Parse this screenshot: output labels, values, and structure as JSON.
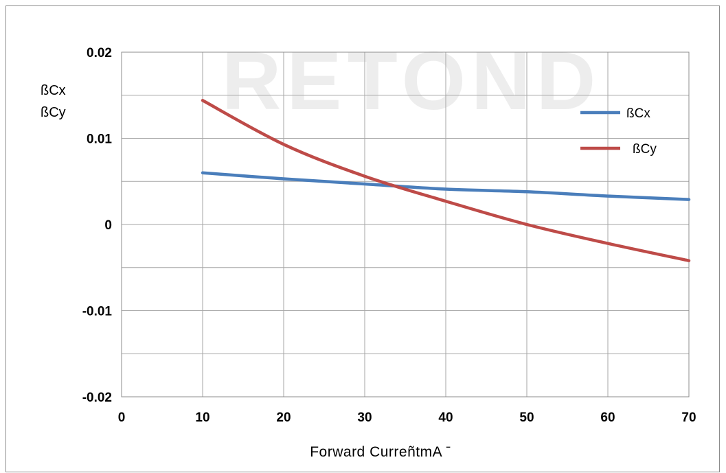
{
  "chart_data": {
    "type": "line",
    "x": [
      10,
      20,
      30,
      40,
      50,
      60,
      70
    ],
    "series": [
      {
        "name": "ßCx",
        "values": [
          0.006,
          0.0053,
          0.0047,
          0.0041,
          0.0038,
          0.0033,
          0.0029
        ],
        "color": "#4a7ebb"
      },
      {
        "name": "ßCy",
        "values": [
          0.0144,
          0.0093,
          0.0056,
          0.0027,
          0.0,
          -0.0022,
          -0.0042
        ],
        "color": "#be4b48"
      }
    ],
    "xlim": [
      0,
      70
    ],
    "ylim": [
      -0.02,
      0.02
    ],
    "x_ticks": [
      "0",
      "10",
      "20",
      "30",
      "40",
      "50",
      "60",
      "70"
    ],
    "y_ticks": [
      "0.02",
      "0.01",
      "0",
      "-0.01",
      "-0.02"
    ],
    "y_tick_values": [
      0.02,
      0.01,
      0,
      -0.01,
      -0.02
    ],
    "xlabel": "Forward CurreñtmA ˉ",
    "ylabel_lines": [
      "ßCx",
      "ßCy"
    ],
    "legend_position": "right",
    "grid": true,
    "watermark": "RETOND"
  }
}
